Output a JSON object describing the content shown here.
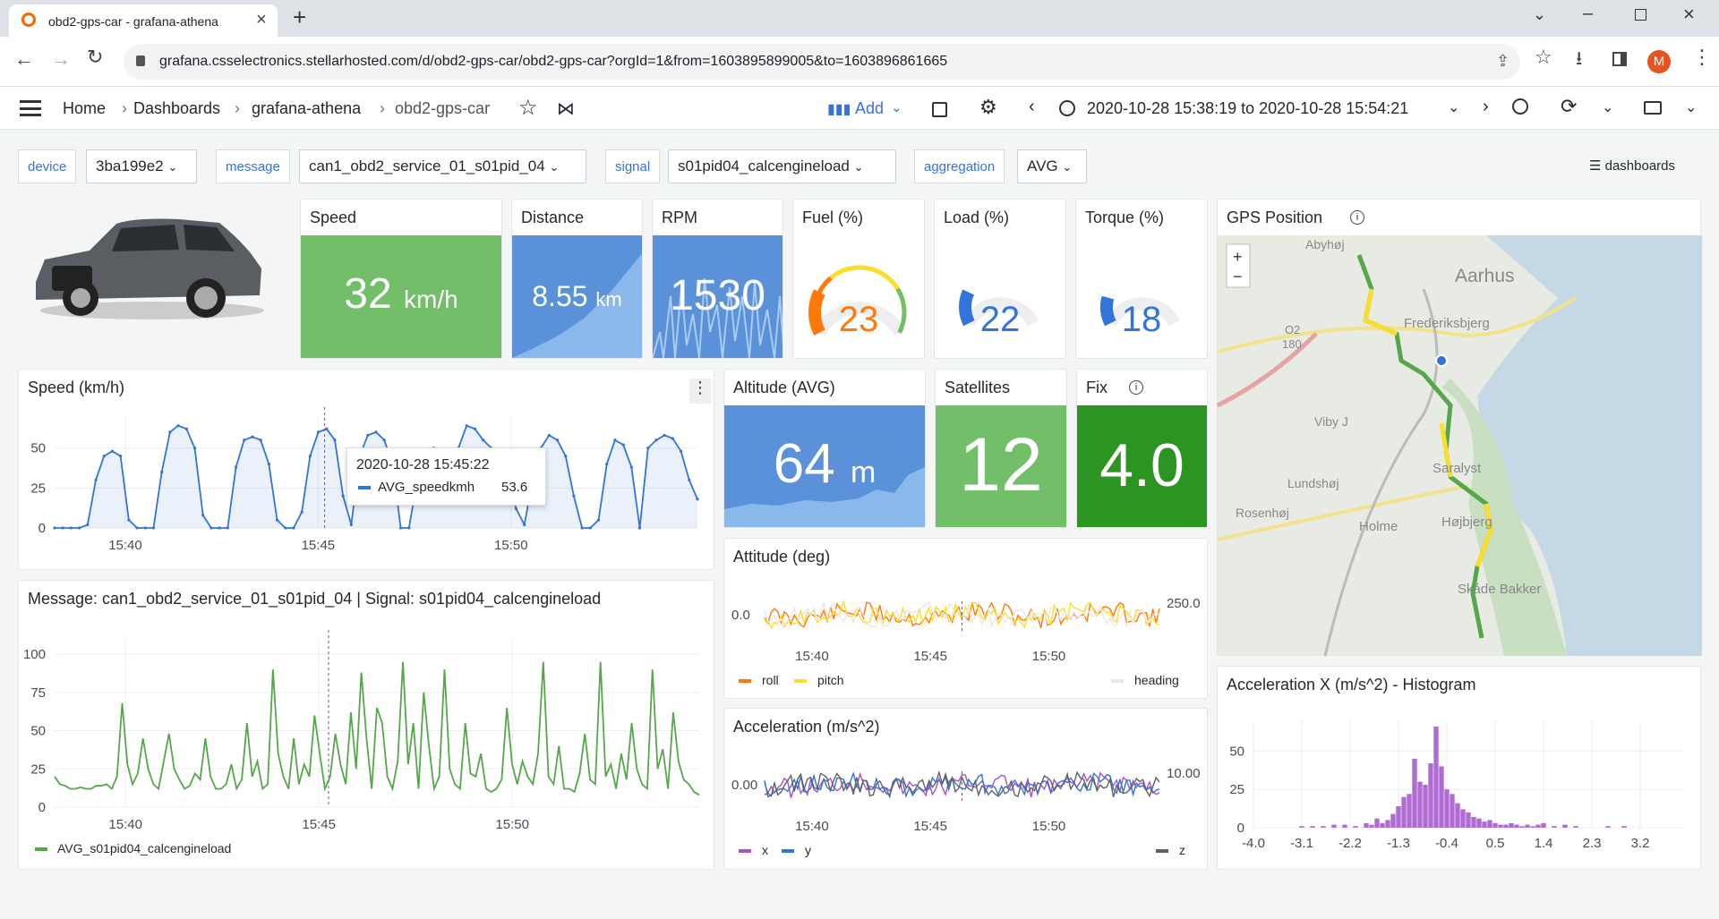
{
  "browser": {
    "tab_title": "obd2-gps-car - grafana-athena",
    "url": "grafana.csselectronics.stellarhosted.com/d/obd2-gps-car/obd2-gps-car?orgId=1&from=1603895899005&to=1603896861665",
    "profile_initial": "M"
  },
  "topbar": {
    "breadcrumb": [
      "Home",
      "Dashboards",
      "grafana-athena",
      "obd2-gps-car"
    ],
    "add_label": "Add",
    "time_range": "2020-10-28 15:38:19 to 2020-10-28 15:54:21"
  },
  "variables": [
    {
      "label": "device",
      "value": "3ba199e2"
    },
    {
      "label": "message",
      "value": "can1_obd2_service_01_s01pid_04"
    },
    {
      "label": "signal",
      "value": "s01pid04_calcengineload"
    },
    {
      "label": "aggregation",
      "value": "AVG"
    }
  ],
  "dashboards_link": "dashboards",
  "panels": {
    "speed": {
      "title": "Speed",
      "value": "32",
      "unit": "km/h",
      "color": "#73bf69"
    },
    "distance": {
      "title": "Distance",
      "value": "8.55",
      "unit": "km",
      "color": "#5794f2"
    },
    "rpm": {
      "title": "RPM",
      "value": "1530",
      "color": "#5794f2"
    },
    "fuel": {
      "title": "Fuel (%)",
      "value": "23",
      "fraction": 0.23,
      "color": "#ff780a"
    },
    "load": {
      "title": "Load (%)",
      "value": "22",
      "fraction": 0.22,
      "color": "#3274d9"
    },
    "torque": {
      "title": "Torque (%)",
      "value": "18",
      "fraction": 0.18,
      "color": "#3274d9"
    },
    "gps": {
      "title": "GPS Position",
      "zoom_in": "+",
      "zoom_out": "−",
      "places": [
        "Abyhøj",
        "Aarhus",
        "Frederiksbjerg",
        "O2",
        "180",
        "Viby J",
        "Lundshøj",
        "Saralyst",
        "Rosenhøj",
        "Holme",
        "Højbjerg",
        "Skåde Bakker"
      ]
    },
    "altitude": {
      "title": "Altitude (AVG)",
      "value": "64",
      "unit": "m",
      "color": "#5794f2"
    },
    "satellites": {
      "title": "Satellites",
      "value": "12",
      "color": "#73bf69"
    },
    "fix": {
      "title": "Fix",
      "value": "4.0",
      "color": "#37872d"
    },
    "speed_chart": {
      "title": "Speed (km/h)",
      "tooltip_time": "2020-10-28 15:45:22",
      "tooltip_series": "AVG_speedkmh",
      "tooltip_value": "53.6"
    },
    "engine_chart": {
      "title": "Message: can1_obd2_service_01_s01pid_04 | Signal: s01pid04_calcengineload",
      "legend": "AVG_s01pid04_calcengineload"
    },
    "attitude": {
      "title": "Attitude (deg)",
      "legend": [
        "roll",
        "pitch",
        "heading"
      ]
    },
    "acceleration": {
      "title": "Acceleration (m/s^2)",
      "legend": [
        "x",
        "y",
        "z"
      ]
    },
    "histogram": {
      "title": "Acceleration X (m/s^2) - Histogram"
    }
  },
  "chart_data": [
    {
      "type": "line",
      "title": "Speed (km/h)",
      "x_ticks": [
        "15:40",
        "15:45",
        "15:50"
      ],
      "yticks": [
        0,
        25,
        50
      ],
      "ylim": [
        0,
        70
      ],
      "series": [
        {
          "name": "AVG_speedkmh",
          "color": "#3274d9",
          "values": [
            0,
            0,
            0,
            0,
            2,
            30,
            45,
            48,
            45,
            5,
            0,
            0,
            0,
            35,
            60,
            64,
            62,
            50,
            8,
            0,
            0,
            0,
            38,
            55,
            57,
            55,
            40,
            5,
            0,
            0,
            10,
            45,
            60,
            62,
            55,
            20,
            2,
            45,
            58,
            60,
            55,
            40,
            0,
            0,
            30,
            45,
            50,
            48,
            35,
            50,
            64,
            62,
            55,
            50,
            45,
            30,
            12,
            2,
            30,
            50,
            58,
            55,
            45,
            20,
            0,
            0,
            5,
            40,
            55,
            52,
            38,
            0,
            50,
            55,
            58,
            56,
            48,
            30,
            18
          ]
        }
      ]
    },
    {
      "type": "line",
      "title": "Message: can1_obd2_service_01_s01pid_04 | Signal: s01pid04_calcengineload",
      "x_ticks": [
        "15:40",
        "15:45",
        "15:50"
      ],
      "yticks": [
        0,
        25,
        50,
        75,
        100
      ],
      "ylim": [
        0,
        110
      ],
      "series": [
        {
          "name": "AVG_s01pid04_calcengineload",
          "color": "#56a64b",
          "values": [
            20,
            15,
            14,
            12,
            12,
            13,
            12,
            12,
            14,
            14,
            15,
            12,
            20,
            68,
            28,
            15,
            22,
            45,
            25,
            15,
            12,
            30,
            48,
            25,
            18,
            12,
            14,
            22,
            18,
            45,
            20,
            12,
            12,
            15,
            28,
            12,
            18,
            55,
            20,
            30,
            12,
            15,
            90,
            35,
            20,
            12,
            45,
            15,
            28,
            20,
            60,
            35,
            12,
            20,
            48,
            28,
            15,
            62,
            25,
            88,
            45,
            12,
            65,
            55,
            20,
            12,
            30,
            95,
            28,
            55,
            12,
            75,
            40,
            12,
            20,
            90,
            25,
            15,
            12,
            55,
            22,
            20,
            35,
            12,
            10,
            12,
            18,
            65,
            28,
            15,
            30,
            20,
            15,
            35,
            95,
            20,
            15,
            40,
            12,
            12,
            10,
            22,
            48,
            18,
            15,
            95,
            20,
            28,
            12,
            35,
            18,
            55,
            25,
            15,
            12,
            90,
            25,
            38,
            12,
            62,
            30,
            18,
            15,
            10,
            8
          ]
        }
      ]
    },
    {
      "type": "line",
      "title": "Attitude (deg)",
      "x_ticks": [
        "15:40",
        "15:45",
        "15:50"
      ],
      "yticks_left": [
        "0.0"
      ],
      "yticks_right": [
        "250.0"
      ],
      "series": [
        {
          "name": "roll",
          "color": "#ff780a"
        },
        {
          "name": "pitch",
          "color": "#fade2a"
        },
        {
          "name": "heading",
          "color": "#e8e8e8"
        }
      ]
    },
    {
      "type": "line",
      "title": "Acceleration (m/s^2)",
      "x_ticks": [
        "15:40",
        "15:45",
        "15:50"
      ],
      "yticks_left": [
        "0.00"
      ],
      "yticks_right": [
        "10.00"
      ],
      "series": [
        {
          "name": "x",
          "color": "#a352cc"
        },
        {
          "name": "y",
          "color": "#3274d9"
        },
        {
          "name": "z",
          "color": "#616161"
        }
      ]
    },
    {
      "type": "bar",
      "title": "Acceleration X (m/s^2) - Histogram",
      "x_ticks": [
        "-4.0",
        "-3.1",
        "-2.2",
        "-1.3",
        "-0.4",
        "0.5",
        "1.4",
        "2.3",
        "3.2"
      ],
      "yticks": [
        0,
        25,
        50
      ],
      "ylim": [
        0,
        70
      ],
      "color": "#a352cc",
      "bins": [
        -3.1,
        -2.9,
        -2.7,
        -2.5,
        -2.3,
        -2.1,
        -1.9,
        -1.8,
        -1.7,
        -1.6,
        -1.5,
        -1.4,
        -1.3,
        -1.2,
        -1.1,
        -1.0,
        -0.9,
        -0.8,
        -0.7,
        -0.6,
        -0.5,
        -0.4,
        -0.3,
        -0.2,
        -0.1,
        0.0,
        0.1,
        0.2,
        0.3,
        0.4,
        0.5,
        0.6,
        0.7,
        0.8,
        0.9,
        1.0,
        1.1,
        1.2,
        1.3,
        1.4,
        1.6,
        1.8,
        2.0,
        2.6,
        2.9
      ],
      "values": [
        1,
        1,
        1,
        2,
        2,
        1,
        3,
        2,
        6,
        3,
        5,
        9,
        14,
        20,
        22,
        45,
        30,
        28,
        42,
        66,
        40,
        25,
        22,
        16,
        12,
        10,
        7,
        6,
        4,
        5,
        3,
        2,
        2,
        3,
        2,
        1,
        2,
        1,
        2,
        3,
        1,
        2,
        1,
        1,
        1
      ]
    }
  ]
}
